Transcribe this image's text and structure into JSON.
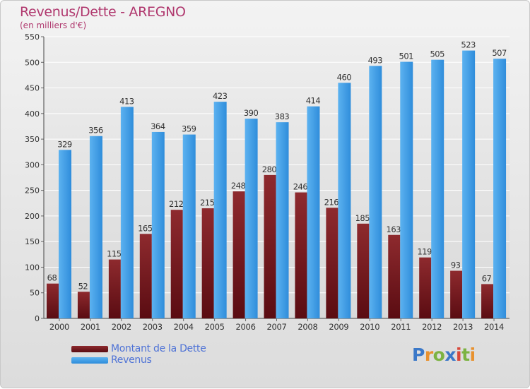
{
  "title": "Revenus/Dette - AREGNO",
  "subtitle": "(en milliers d'€)",
  "legend": {
    "debt_label": "Montant de la Dette",
    "revenue_label": "Revenus"
  },
  "logo": {
    "text": "Proxiti",
    "letters": [
      {
        "char": "P",
        "color": "#3a78c8"
      },
      {
        "char": "r",
        "color": "#e8912e"
      },
      {
        "char": "o",
        "color": "#7cb342"
      },
      {
        "char": "x",
        "color": "#3a78c8"
      },
      {
        "char": "i",
        "color": "#d8483a"
      },
      {
        "char": "t",
        "color": "#7cb342"
      },
      {
        "char": "i",
        "color": "#e8912e"
      }
    ]
  },
  "colors": {
    "debt": "#7a1e22",
    "revenue": "#3a9ae6",
    "title": "#b0386e",
    "legend_text": "#4f73d6"
  },
  "chart_data": {
    "type": "bar",
    "categories": [
      "2000",
      "2001",
      "2002",
      "2003",
      "2004",
      "2005",
      "2006",
      "2007",
      "2008",
      "2009",
      "2010",
      "2011",
      "2012",
      "2013",
      "2014"
    ],
    "series": [
      {
        "name": "Montant de la Dette",
        "values": [
          68,
          52,
          115,
          165,
          212,
          215,
          248,
          280,
          246,
          216,
          185,
          163,
          119,
          93,
          67
        ]
      },
      {
        "name": "Revenus",
        "values": [
          329,
          356,
          413,
          364,
          359,
          423,
          390,
          383,
          414,
          460,
          493,
          501,
          505,
          523,
          507
        ]
      }
    ],
    "title": "Revenus/Dette - AREGNO",
    "ylabel": "(en milliers d'€)",
    "ylim": [
      0,
      550
    ],
    "yticks": [
      0,
      50,
      100,
      150,
      200,
      250,
      300,
      350,
      400,
      450,
      500,
      550
    ],
    "grid": true,
    "legend": "bottom-left"
  }
}
